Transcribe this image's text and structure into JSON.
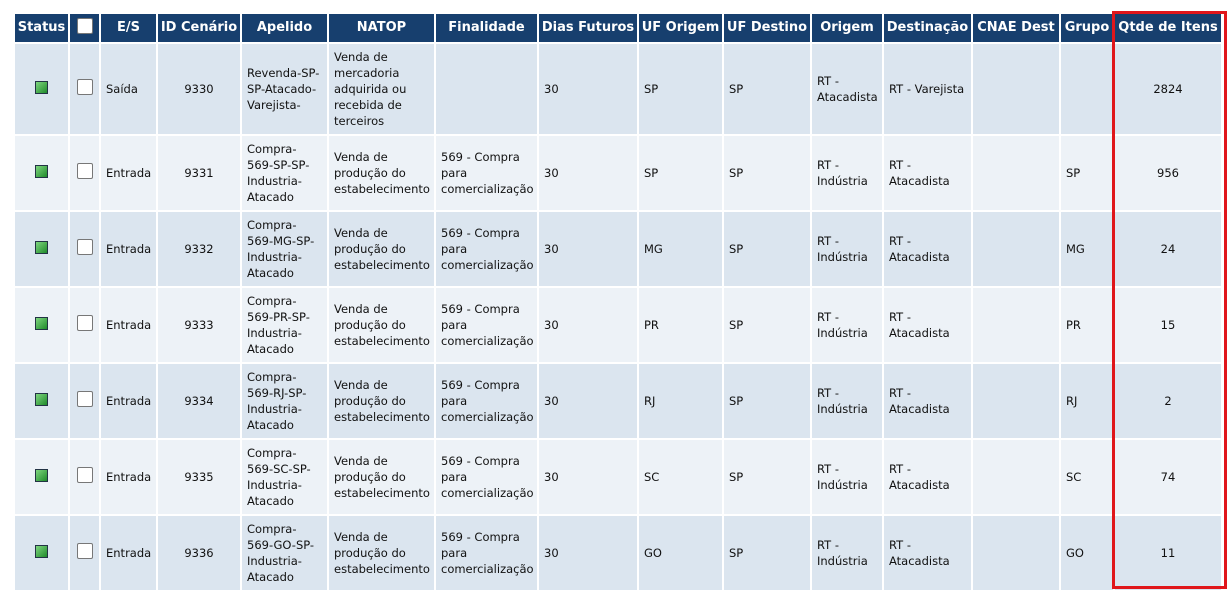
{
  "table": {
    "headers": [
      "Status",
      "E/S",
      "ID Cenário",
      "Apelido",
      "NATOP",
      "Finalidade",
      "Dias Futuros",
      "UF Origem",
      "UF Destino",
      "Origem",
      "Destinação",
      "CNAE Dest",
      "Grupo",
      "Qtde de Itens"
    ],
    "rows": [
      {
        "es": "Saída",
        "id": 9330,
        "apelido": "Revenda-SP-SP-Atacado-Varejista-",
        "natop": "Venda de mercadoria adquirida ou recebida de terceiros",
        "dias": 30,
        "uf_origem": "SP",
        "uf_destino": "SP",
        "origem": "RT - Atacadista",
        "destinacao": "RT - Varejista",
        "qtde": 2824
      },
      {
        "es": "Entrada",
        "id": 9331,
        "apelido": "Compra-569-SP-SP-Industria-Atacado",
        "natop": "Venda de produção do estabelecimento",
        "finalidade": "569 - Compra para comercialização",
        "dias": 30,
        "uf_origem": "SP",
        "uf_destino": "SP",
        "origem": "RT - Indústria",
        "destinacao": "RT - Atacadista",
        "grupo": "SP",
        "qtde": 956
      },
      {
        "es": "Entrada",
        "id": 9332,
        "apelido": "Compra-569-MG-SP-Industria-Atacado",
        "natop": "Venda de produção do estabelecimento",
        "finalidade": "569 - Compra para comercialização",
        "dias": 30,
        "uf_origem": "MG",
        "uf_destino": "SP",
        "origem": "RT - Indústria",
        "destinacao": "RT - Atacadista",
        "grupo": "MG",
        "qtde": 24
      },
      {
        "es": "Entrada",
        "id": 9333,
        "apelido": "Compra-569-PR-SP-Industria-Atacado",
        "natop": "Venda de produção do estabelecimento",
        "finalidade": "569 - Compra para comercialização",
        "dias": 30,
        "uf_origem": "PR",
        "uf_destino": "SP",
        "origem": "RT - Indústria",
        "destinacao": "RT - Atacadista",
        "grupo": "PR",
        "qtde": 15
      },
      {
        "es": "Entrada",
        "id": 9334,
        "apelido": "Compra-569-RJ-SP-Industria-Atacado",
        "natop": "Venda de produção do estabelecimento",
        "finalidade": "569 - Compra para comercialização",
        "dias": 30,
        "uf_origem": "RJ",
        "uf_destino": "SP",
        "origem": "RT - Indústria",
        "destinacao": "RT - Atacadista",
        "grupo": "RJ",
        "qtde": 2
      },
      {
        "es": "Entrada",
        "id": 9335,
        "apelido": "Compra-569-SC-SP-Industria-Atacado",
        "natop": "Venda de produção do estabelecimento",
        "finalidade": "569 - Compra para comercialização",
        "dias": 30,
        "uf_origem": "SC",
        "uf_destino": "SP",
        "origem": "RT - Indústria",
        "destinacao": "RT - Atacadista",
        "grupo": "SC",
        "qtde": 74
      },
      {
        "es": "Entrada",
        "id": 9336,
        "apelido": "Compra-569-GO-SP-Industria-Atacado",
        "natop": "Venda de produção do estabelecimento",
        "finalidade": "569 - Compra para comercialização",
        "dias": 30,
        "uf_origem": "GO",
        "uf_destino": "SP",
        "origem": "RT - Indústria",
        "destinacao": "RT - Atacadista",
        "grupo": "GO",
        "qtde": 11
      }
    ]
  }
}
